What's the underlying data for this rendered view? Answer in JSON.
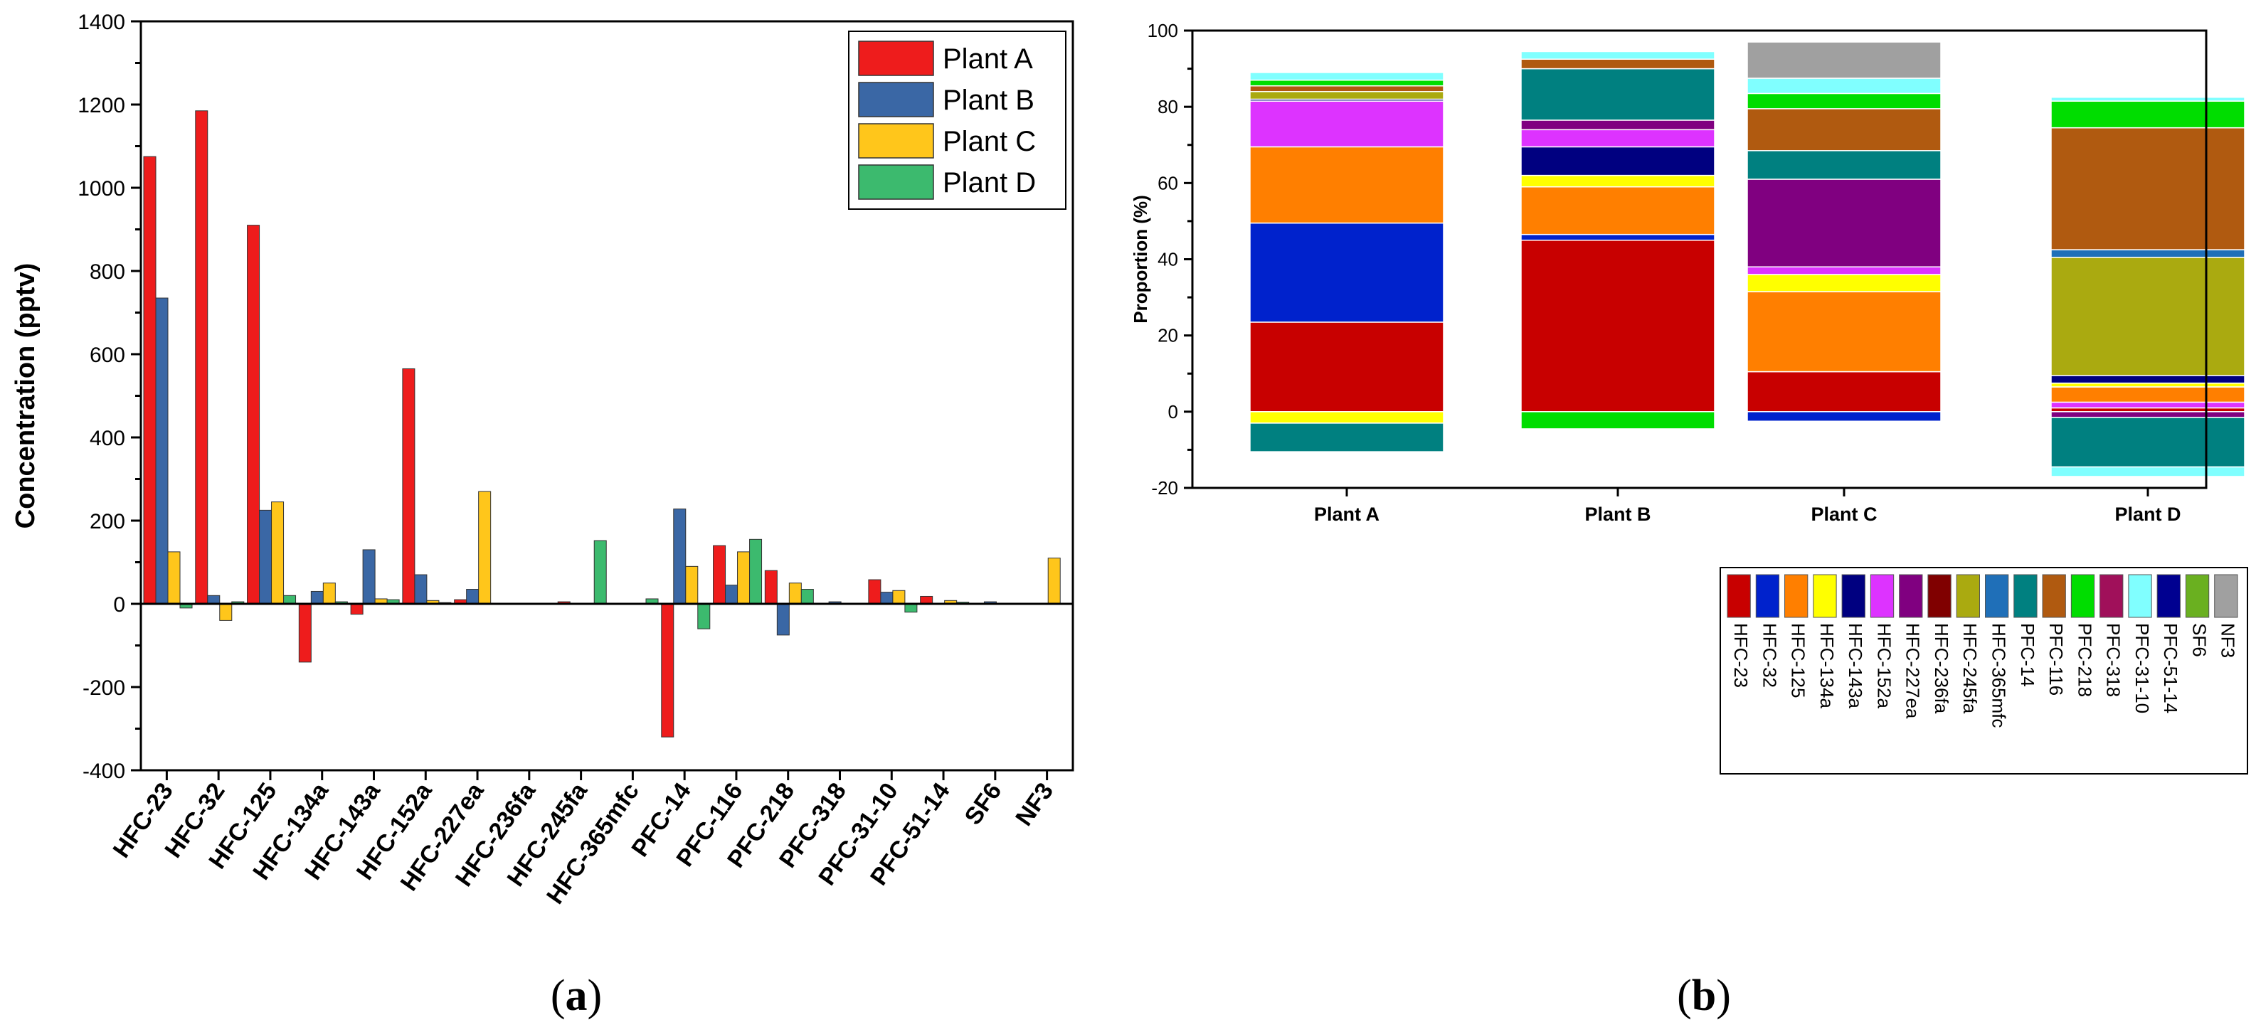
{
  "chart_data": [
    {
      "panel": "a",
      "panel_label": "a",
      "type": "bar",
      "title": "",
      "xlabel": "",
      "ylabel": "Concentration (pptv)",
      "ylim": [
        -400,
        1400
      ],
      "yticks": [
        -400,
        -200,
        0,
        200,
        400,
        600,
        800,
        1000,
        1200,
        1400
      ],
      "legend_position": "top-right",
      "categories": [
        "HFC-23",
        "HFC-32",
        "HFC-125",
        "HFC-134a",
        "HFC-143a",
        "HFC-152a",
        "HFC-227ea",
        "HFC-236fa",
        "HFC-245fa",
        "HFC-365mfc",
        "PFC-14",
        "PFC-116",
        "PFC-218",
        "PFC-318",
        "PFC-31-10",
        "PFC-51-14",
        "SF6",
        "NF3"
      ],
      "series": [
        {
          "name": "Plant A",
          "color": "#ee1c1c",
          "values": [
            1075,
            1185,
            910,
            -140,
            -25,
            565,
            10,
            0,
            5,
            0,
            -320,
            140,
            80,
            0,
            58,
            18,
            0,
            0
          ]
        },
        {
          "name": "Plant B",
          "color": "#3a67a5",
          "values": [
            735,
            20,
            225,
            30,
            130,
            70,
            35,
            0,
            0,
            0,
            228,
            45,
            -75,
            5,
            28,
            0,
            5,
            0
          ]
        },
        {
          "name": "Plant C",
          "color": "#ffc61b",
          "values": [
            125,
            -40,
            245,
            50,
            12,
            8,
            270,
            0,
            0,
            0,
            90,
            125,
            50,
            0,
            32,
            8,
            0,
            110
          ]
        },
        {
          "name": "Plant D",
          "color": "#3cba6e",
          "values": [
            -10,
            5,
            20,
            5,
            10,
            3,
            0,
            0,
            152,
            12,
            -60,
            155,
            35,
            0,
            -20,
            4,
            0,
            0
          ]
        }
      ]
    },
    {
      "panel": "b",
      "panel_label": "b",
      "type": "bar",
      "stacked": true,
      "title": "",
      "xlabel": "",
      "ylabel": "Proportion (%)",
      "ylim": [
        -20,
        100
      ],
      "yticks": [
        -20,
        0,
        20,
        40,
        60,
        80,
        100
      ],
      "legend_position": "bottom-right",
      "categories": [
        "Plant A",
        "Plant B",
        "Plant C",
        "Plant D"
      ],
      "species": [
        {
          "name": "HFC-23",
          "color": "#c80000"
        },
        {
          "name": "HFC-32",
          "color": "#0022cc"
        },
        {
          "name": "HFC-125",
          "color": "#ff7f00"
        },
        {
          "name": "HFC-134a",
          "color": "#ffff00"
        },
        {
          "name": "HFC-143a",
          "color": "#000080"
        },
        {
          "name": "HFC-152a",
          "color": "#dd33ff"
        },
        {
          "name": "HFC-227ea",
          "color": "#800080"
        },
        {
          "name": "HFC-236fa",
          "color": "#800000"
        },
        {
          "name": "HFC-245fa",
          "color": "#aaaa10"
        },
        {
          "name": "HFC-365mfc",
          "color": "#1f6fb8"
        },
        {
          "name": "PFC-14",
          "color": "#008080"
        },
        {
          "name": "PFC-116",
          "color": "#b05a10"
        },
        {
          "name": "PFC-218",
          "color": "#00dd00"
        },
        {
          "name": "PFC-318",
          "color": "#a0105a"
        },
        {
          "name": "PFC-31-10",
          "color": "#80ffff"
        },
        {
          "name": "PFC-51-14",
          "color": "#000090"
        },
        {
          "name": "SF6",
          "color": "#6ab020"
        },
        {
          "name": "NF3",
          "color": "#a0a0a0"
        }
      ],
      "stacks": [
        {
          "category": "Plant A",
          "segments": [
            {
              "species": "HFC-23",
              "from": 0,
              "to": 23.5
            },
            {
              "species": "HFC-32",
              "from": 23.5,
              "to": 49.5
            },
            {
              "species": "HFC-125",
              "from": 49.5,
              "to": 69.5
            },
            {
              "species": "HFC-152a",
              "from": 69.5,
              "to": 81.5
            },
            {
              "species": "HFC-143a",
              "from": 81.5,
              "to": 82
            },
            {
              "species": "HFC-245fa",
              "from": 82,
              "to": 84
            },
            {
              "species": "PFC-116",
              "from": 84,
              "to": 85.5
            },
            {
              "species": "PFC-218",
              "from": 85.5,
              "to": 87
            },
            {
              "species": "PFC-31-10",
              "from": 87,
              "to": 89
            },
            {
              "species": "HFC-134a",
              "from": 0,
              "to": -3
            },
            {
              "species": "PFC-14",
              "from": -3,
              "to": -10.5
            }
          ]
        },
        {
          "category": "Plant B",
          "segments": [
            {
              "species": "HFC-23",
              "from": 0,
              "to": 45
            },
            {
              "species": "HFC-32",
              "from": 45,
              "to": 46.5
            },
            {
              "species": "HFC-125",
              "from": 46.5,
              "to": 59
            },
            {
              "species": "HFC-134a",
              "from": 59,
              "to": 62
            },
            {
              "species": "HFC-143a",
              "from": 62,
              "to": 69.5
            },
            {
              "species": "HFC-152a",
              "from": 69.5,
              "to": 74
            },
            {
              "species": "HFC-227ea",
              "from": 74,
              "to": 76.5
            },
            {
              "species": "PFC-14",
              "from": 76.5,
              "to": 90
            },
            {
              "species": "PFC-116",
              "from": 90,
              "to": 92.5
            },
            {
              "species": "PFC-31-10",
              "from": 92.5,
              "to": 94.5
            },
            {
              "species": "PFC-218",
              "from": 0,
              "to": -4.5
            }
          ]
        },
        {
          "category": "Plant C",
          "segments": [
            {
              "species": "HFC-23",
              "from": 0,
              "to": 10.5
            },
            {
              "species": "HFC-125",
              "from": 10.5,
              "to": 31.5
            },
            {
              "species": "HFC-134a",
              "from": 31.5,
              "to": 36
            },
            {
              "species": "HFC-152a",
              "from": 36,
              "to": 38
            },
            {
              "species": "HFC-227ea",
              "from": 38,
              "to": 61
            },
            {
              "species": "PFC-14",
              "from": 61,
              "to": 68.5
            },
            {
              "species": "PFC-116",
              "from": 68.5,
              "to": 79.5
            },
            {
              "species": "PFC-218",
              "from": 79.5,
              "to": 83.5
            },
            {
              "species": "PFC-31-10",
              "from": 83.5,
              "to": 87.5
            },
            {
              "species": "NF3",
              "from": 87.5,
              "to": 97
            },
            {
              "species": "HFC-32",
              "from": 0,
              "to": -2.5
            }
          ]
        },
        {
          "category": "Plant D",
          "segments": [
            {
              "species": "HFC-23",
              "from": 0,
              "to": 1
            },
            {
              "species": "HFC-152a",
              "from": 1,
              "to": 2.5
            },
            {
              "species": "HFC-125",
              "from": 2.5,
              "to": 6.5
            },
            {
              "species": "HFC-134a",
              "from": 6.5,
              "to": 7.5
            },
            {
              "species": "HFC-143a",
              "from": 7.5,
              "to": 9.5
            },
            {
              "species": "HFC-245fa",
              "from": 9.5,
              "to": 40.5
            },
            {
              "species": "HFC-365mfc",
              "from": 40.5,
              "to": 42.5
            },
            {
              "species": "PFC-116",
              "from": 42.5,
              "to": 74.5
            },
            {
              "species": "PFC-218",
              "from": 74.5,
              "to": 81.5
            },
            {
              "species": "PFC-31-10",
              "from": 81.5,
              "to": 82.5
            },
            {
              "species": "HFC-227ea",
              "from": 0,
              "to": -1.5
            },
            {
              "species": "PFC-14",
              "from": -1.5,
              "to": -14.5
            },
            {
              "species": "PFC-31-10",
              "from": -14.5,
              "to": -17
            }
          ]
        }
      ]
    }
  ]
}
